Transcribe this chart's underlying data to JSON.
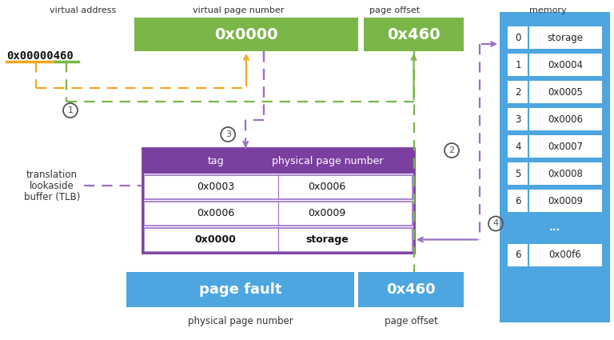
{
  "bg_color": "#ffffff",
  "green_color": "#7ab648",
  "blue_color": "#4da6e0",
  "purple_header": "#7b3fa0",
  "purple_border": "#8b4db0",
  "purple_light": "#9b6fc8",
  "orange_color": "#f5a623",
  "dashed_green": "#7ab648",
  "dashed_orange": "#f5a623",
  "dashed_purple": "#9b6fc8",
  "mem_bg": "#4da6e0",
  "text_dark": "#333333",
  "virtual_address_label": "virtual address",
  "vpn_label": "virtual page number",
  "po_label": "page offset",
  "memory_label": "memory",
  "va_value": "0x00000460",
  "vpn_value": "0x0000",
  "po_value": "0x460",
  "tlb_label_line1": "translation",
  "tlb_label_line2": "lookaside",
  "tlb_label_line3": "buffer (TLB)",
  "tlb_headers": [
    "tag",
    "physical page number"
  ],
  "tlb_rows": [
    [
      "0x0003",
      "0x0006"
    ],
    [
      "0x0006",
      "0x0009"
    ],
    [
      "0x0000",
      "storage"
    ]
  ],
  "bottom_left_label": "page fault",
  "bottom_right_label": "0x460",
  "bottom_left_sublabel": "physical page number",
  "bottom_right_sublabel": "page offset",
  "memory_rows": [
    [
      "0",
      "storage"
    ],
    [
      "1",
      "0x0004"
    ],
    [
      "2",
      "0x0005"
    ],
    [
      "3",
      "0x0006"
    ],
    [
      "4",
      "0x0007"
    ],
    [
      "5",
      "0x0008"
    ],
    [
      "6",
      "0x0009"
    ],
    [
      "...",
      ""
    ],
    [
      "6",
      "0x00f6"
    ]
  ]
}
